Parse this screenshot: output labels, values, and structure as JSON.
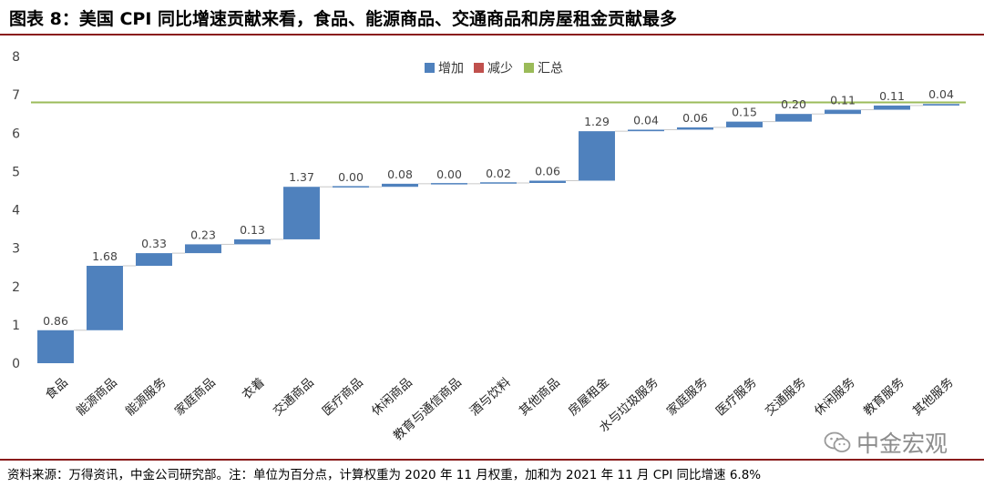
{
  "title": "图表 8：美国 CPI 同比增速贡献来看，食品、能源商品、交通商品和房屋租金贡献最多",
  "source_note": "资料来源：万得资讯，中金公司研究部。注：单位为百分点，计算权重为 2020 年 11 月权重，加和为 2021 年 11 月 CPI 同比增速 6.8%",
  "watermark": "中金宏观",
  "colors": {
    "increase": "#4f81bd",
    "decrease": "#c0504d",
    "total": "#9bbb59",
    "connector": "#c8c8c8"
  },
  "chart_data": {
    "type": "bar",
    "subtype": "waterfall",
    "categories": [
      "食品",
      "能源商品",
      "能源服务",
      "家庭商品",
      "衣着",
      "交通商品",
      "医疗商品",
      "休闲商品",
      "教育与通信商品",
      "酒与饮料",
      "其他商品",
      "房屋租金",
      "水与垃圾服务",
      "家庭服务",
      "医疗服务",
      "交通服务",
      "休闲服务",
      "教育服务",
      "其他服务"
    ],
    "values": [
      0.86,
      1.68,
      0.33,
      0.23,
      0.13,
      1.37,
      0.0,
      0.08,
      0.0,
      0.02,
      0.06,
      1.29,
      0.04,
      0.06,
      0.15,
      0.2,
      0.11,
      0.11,
      0.04
    ],
    "value_labels": [
      "0.86",
      "1.68",
      "0.33",
      "0.23",
      "0.13",
      "1.37",
      "0.00",
      "0.08",
      "0.00",
      "0.02",
      "0.06",
      "1.29",
      "0.04",
      "0.06",
      "0.15",
      "0.20",
      "0.11",
      "0.11",
      "0.04"
    ],
    "total": 6.8,
    "legend": [
      {
        "name": "增加",
        "color": "#4f81bd"
      },
      {
        "name": "减少",
        "color": "#c0504d"
      },
      {
        "name": "汇总",
        "color": "#9bbb59"
      }
    ],
    "legend_position": "top-center",
    "ylim": [
      0,
      8
    ],
    "yticks": [
      "0",
      "1",
      "2",
      "3",
      "4",
      "5",
      "6",
      "7",
      "8"
    ],
    "grid": false
  }
}
